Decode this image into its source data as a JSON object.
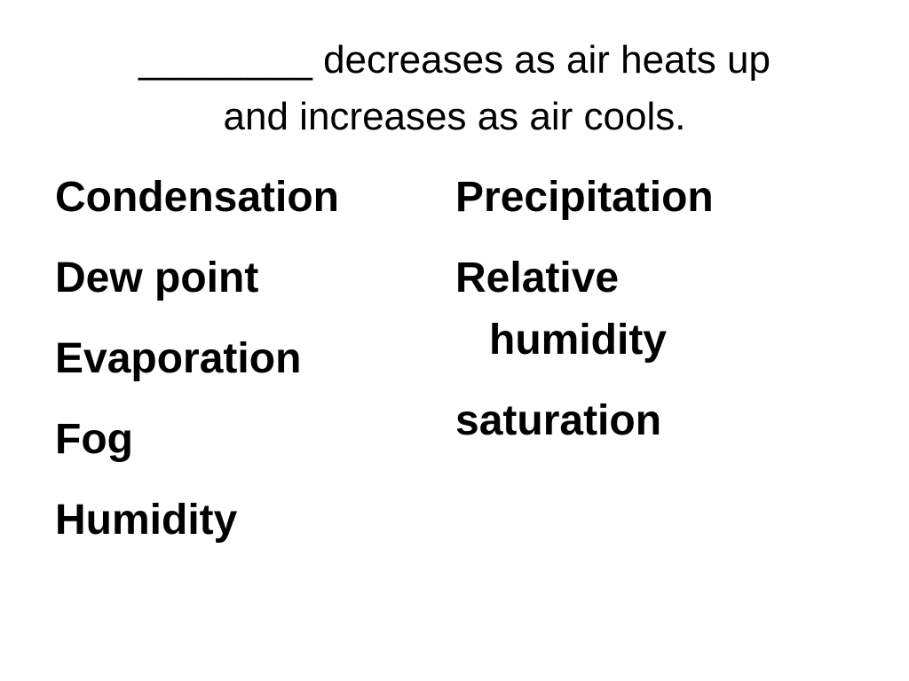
{
  "slide": {
    "title_line1": "________ decreases as air heats up",
    "title_line2": "and increases as air cools.",
    "left_terms": [
      "Condensation",
      "Dew point",
      "Evaporation",
      "Fog",
      "Humidity"
    ],
    "right_terms": [
      {
        "line1": "Precipitation",
        "line2": ""
      },
      {
        "line1": "Relative",
        "line2": "humidity"
      },
      {
        "line1": "saturation",
        "line2": ""
      }
    ]
  }
}
